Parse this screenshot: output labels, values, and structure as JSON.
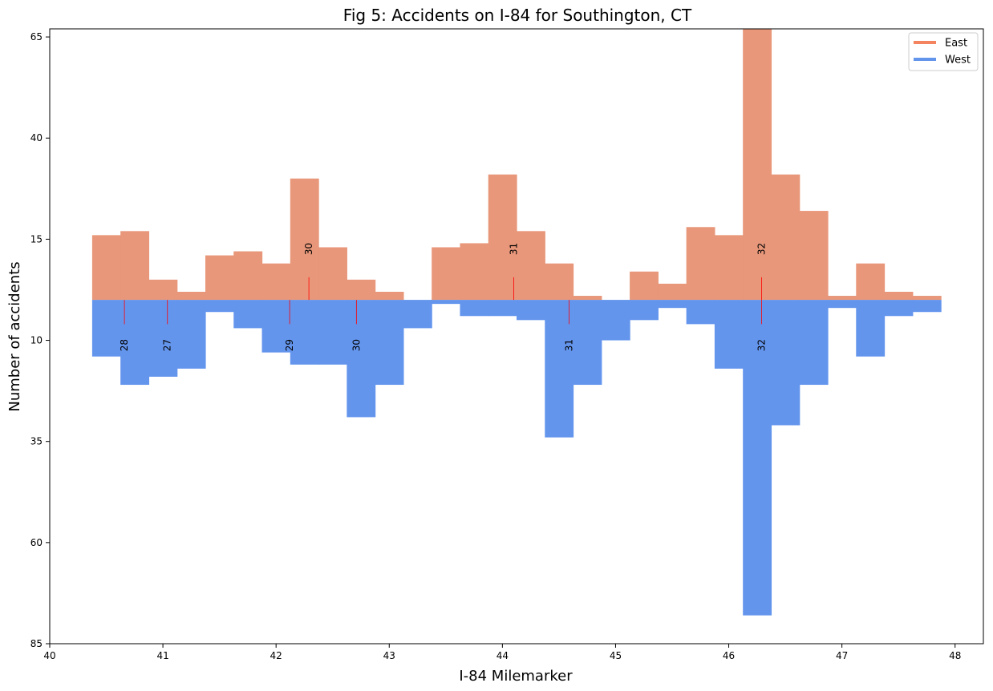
{
  "chart_data": {
    "type": "bar",
    "title": "Fig 5: Accidents on I-84 for Southington, CT",
    "xlabel": "I-84 Milemarker",
    "ylabel": "Number of accidents",
    "xlim": [
      40,
      48.25
    ],
    "ylim": [
      -85,
      67
    ],
    "xticks": [
      40,
      41,
      42,
      43,
      44,
      45,
      46,
      47,
      48
    ],
    "yticks": [
      {
        "value": 65,
        "label": "65"
      },
      {
        "value": 40,
        "label": "40"
      },
      {
        "value": 15,
        "label": "15"
      },
      {
        "value": -10,
        "label": "10"
      },
      {
        "value": -35,
        "label": "35"
      },
      {
        "value": -60,
        "label": "60"
      },
      {
        "value": -85,
        "label": "85"
      }
    ],
    "bin_start": 40.375,
    "bin_width": 0.25,
    "series": [
      {
        "name": "East",
        "color": "#e8977a",
        "legend_color": "#f4845f",
        "values": [
          16,
          17,
          5,
          2,
          11,
          12,
          9,
          30,
          13,
          5,
          2,
          0,
          13,
          14,
          31,
          17,
          9,
          1,
          0,
          7,
          4,
          18,
          16,
          67,
          31,
          22,
          1,
          9,
          2,
          1
        ]
      },
      {
        "name": "West",
        "color": "#6495ed",
        "legend_color": "#6495ed",
        "values": [
          14,
          21,
          19,
          17,
          3,
          7,
          13,
          16,
          16,
          29,
          21,
          7,
          1,
          4,
          4,
          5,
          34,
          21,
          10,
          5,
          2,
          6,
          17,
          78,
          31,
          21,
          2,
          14,
          4,
          3
        ]
      }
    ],
    "exits": {
      "east": [
        {
          "label": "30",
          "x": 42.29
        },
        {
          "label": "31",
          "x": 44.1
        },
        {
          "label": "32",
          "x": 46.29
        }
      ],
      "west": [
        {
          "label": "28",
          "x": 40.66
        },
        {
          "label": "27",
          "x": 41.04
        },
        {
          "label": "29",
          "x": 42.12
        },
        {
          "label": "30",
          "x": 42.71
        },
        {
          "label": "31",
          "x": 44.59
        },
        {
          "label": "32",
          "x": 46.29
        }
      ],
      "marker_color": "#ff0000"
    },
    "legend": {
      "position": "top-right",
      "entries": [
        "East",
        "West"
      ]
    }
  }
}
